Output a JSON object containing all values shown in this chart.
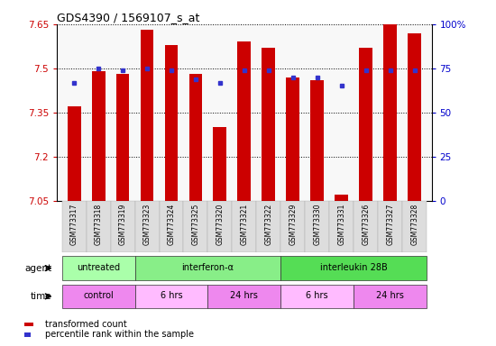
{
  "title": "GDS4390 / 1569107_s_at",
  "samples": [
    "GSM773317",
    "GSM773318",
    "GSM773319",
    "GSM773323",
    "GSM773324",
    "GSM773325",
    "GSM773320",
    "GSM773321",
    "GSM773322",
    "GSM773329",
    "GSM773330",
    "GSM773331",
    "GSM773326",
    "GSM773327",
    "GSM773328"
  ],
  "transformed_count": [
    7.37,
    7.49,
    7.48,
    7.63,
    7.58,
    7.48,
    7.3,
    7.59,
    7.57,
    7.47,
    7.46,
    7.07,
    7.57,
    7.65,
    7.62
  ],
  "percentile_rank": [
    67,
    75,
    74,
    75,
    74,
    69,
    67,
    74,
    74,
    70,
    70,
    65,
    74,
    74,
    74
  ],
  "ylim": [
    7.05,
    7.65
  ],
  "yticks": [
    7.05,
    7.2,
    7.35,
    7.5,
    7.65
  ],
  "ytick_labels": [
    "7.05",
    "7.2",
    "7.35",
    "7.5",
    "7.65"
  ],
  "right_yticks": [
    0,
    25,
    50,
    75,
    100
  ],
  "right_ytick_labels": [
    "0",
    "25",
    "50",
    "75",
    "100%"
  ],
  "bar_color": "#cc0000",
  "dot_color": "#3333cc",
  "agent_groups": [
    {
      "label": "untreated",
      "start": 0,
      "end": 3,
      "color": "#aaffaa"
    },
    {
      "label": "interferon-α",
      "start": 3,
      "end": 9,
      "color": "#88ee88"
    },
    {
      "label": "interleukin 28B",
      "start": 9,
      "end": 15,
      "color": "#55dd55"
    }
  ],
  "time_groups": [
    {
      "label": "control",
      "start": 0,
      "end": 3,
      "color": "#ee88ee"
    },
    {
      "label": "6 hrs",
      "start": 3,
      "end": 6,
      "color": "#ffbbff"
    },
    {
      "label": "24 hrs",
      "start": 6,
      "end": 9,
      "color": "#ee88ee"
    },
    {
      "label": "6 hrs",
      "start": 9,
      "end": 12,
      "color": "#ffbbff"
    },
    {
      "label": "24 hrs",
      "start": 12,
      "end": 15,
      "color": "#ee88ee"
    }
  ],
  "legend_red": "transformed count",
  "legend_blue": "percentile rank within the sample",
  "xticklabel_bg": "#dddddd"
}
